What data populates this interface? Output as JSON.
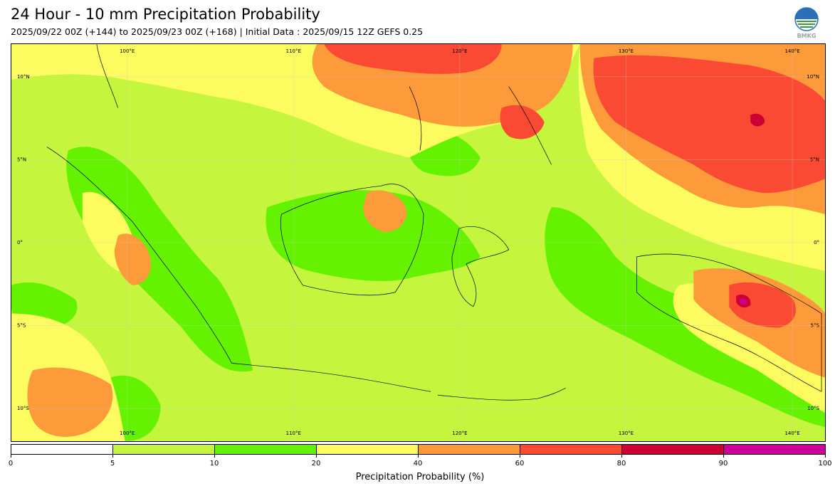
{
  "header": {
    "title": "24 Hour - 10 mm Precipitation Probability",
    "subtitle": "2025/09/22 00Z (+144) to 2025/09/23 00Z (+168) | Initial Data : 2025/09/15 12Z GEFS 0.25"
  },
  "logo": {
    "text": "BMKG",
    "icon": "bmkg-logo-icon"
  },
  "map": {
    "lon_labels": [
      "100°E",
      "110°E",
      "120°E",
      "130°E",
      "140°E"
    ],
    "lat_labels": [
      "10°N",
      "5°N",
      "0°",
      "5°S",
      "10°S"
    ],
    "projection": "plate-carree",
    "extent": {
      "lon": [
        94,
        143
      ],
      "lat": [
        -12,
        12
      ]
    },
    "gridlines": true
  },
  "colorbar": {
    "label": "Precipitation Probability (%)",
    "tick_labels": [
      "0",
      "5",
      "10",
      "20",
      "40",
      "60",
      "80",
      "90",
      "100"
    ],
    "colors": [
      "#ffffff",
      "#c5f53c",
      "#65f200",
      "#fcfc60",
      "#fd9a3a",
      "#fb4a33",
      "#cc0033",
      "#cc0099"
    ]
  }
}
